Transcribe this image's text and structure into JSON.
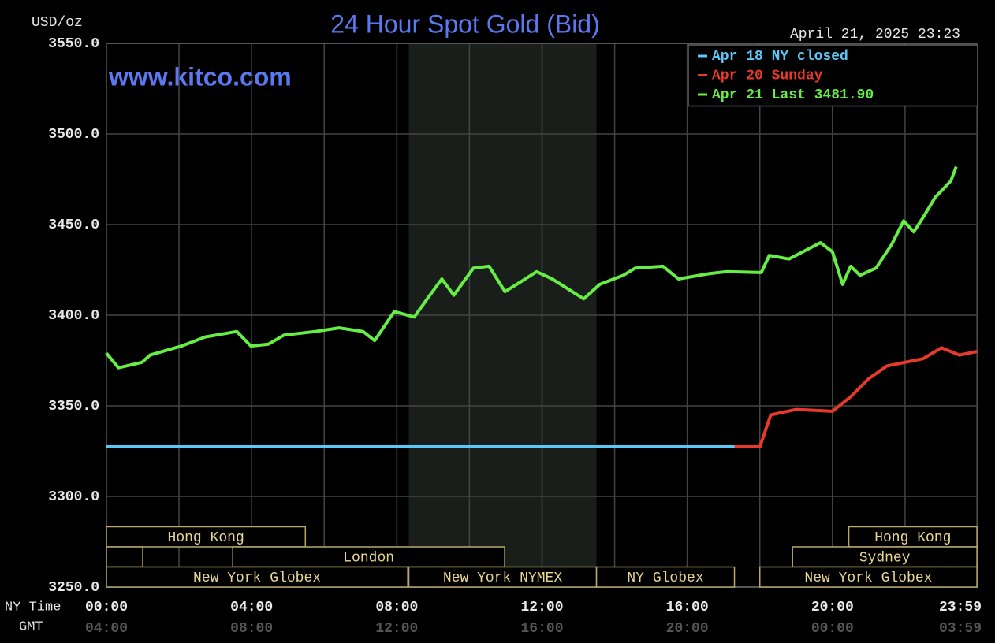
{
  "chart_data": {
    "type": "line",
    "title": "24 Hour Spot Gold (Bid)",
    "y_label": "USD/oz",
    "timestamp": "April 21, 2025 23:23",
    "watermark": "www.kitco.com",
    "x_label": "NY Time",
    "x2_label": "GMT",
    "xlim": [
      0,
      24
    ],
    "ylim": [
      3250,
      3550
    ],
    "yticks": [
      {
        "value": 3250,
        "label": "3250.0"
      },
      {
        "value": 3300,
        "label": "3300.0"
      },
      {
        "value": 3350,
        "label": "3350.0"
      },
      {
        "value": 3400,
        "label": "3400.0"
      },
      {
        "value": 3450,
        "label": "3450.0"
      },
      {
        "value": 3500,
        "label": "3500.0"
      },
      {
        "value": 3550,
        "label": "3550.0"
      }
    ],
    "xticks": [
      {
        "value": 0,
        "label": "00:00"
      },
      {
        "value": 4,
        "label": "04:00"
      },
      {
        "value": 8,
        "label": "08:00"
      },
      {
        "value": 12,
        "label": "12:00"
      },
      {
        "value": 16,
        "label": "16:00"
      },
      {
        "value": 20,
        "label": "20:00"
      },
      {
        "value": 23.98,
        "label": "23:59"
      }
    ],
    "x2ticks": [
      {
        "value": 0,
        "label": "04:00"
      },
      {
        "value": 4,
        "label": "08:00"
      },
      {
        "value": 8,
        "label": "12:00"
      },
      {
        "value": 12,
        "label": "16:00"
      },
      {
        "value": 16,
        "label": "20:00"
      },
      {
        "value": 20,
        "label": "00:00"
      },
      {
        "value": 23.98,
        "label": "03:59"
      }
    ],
    "xgrid": [
      2,
      4,
      6,
      8,
      10,
      12,
      14,
      16,
      18,
      20,
      22
    ],
    "grid": true,
    "shaded": [
      8.33,
      13.5
    ],
    "legend": "top-right",
    "series": [
      {
        "name": "Apr 18 NY closed",
        "color": "#5bc8f5",
        "x": [
          0,
          17.3
        ],
        "values": [
          3327.4,
          3327.4
        ]
      },
      {
        "name": "Apr 20 Sunday",
        "color": "#e8392b",
        "x": [
          17.3,
          18.0,
          18.3,
          19.0,
          20.0,
          20.5,
          21.0,
          21.5,
          22.5,
          23.0,
          23.5,
          23.98
        ],
        "values": [
          3327.4,
          3327.4,
          3345,
          3348,
          3347,
          3355,
          3365,
          3372,
          3376,
          3382,
          3378,
          3380
        ]
      },
      {
        "name": "Apr 21 Last 3481.90",
        "color": "#66ee44",
        "x": [
          0,
          0.33,
          0.98,
          1.2,
          2.07,
          2.72,
          3.59,
          3.98,
          4.46,
          4.89,
          5.76,
          6.41,
          7.07,
          7.39,
          7.93,
          8.48,
          8.91,
          9.24,
          9.57,
          10.11,
          10.54,
          10.98,
          11.3,
          11.85,
          12.28,
          13.15,
          13.59,
          14.24,
          14.57,
          15.33,
          15.76,
          16.63,
          17.07,
          18.04,
          18.26,
          18.8,
          19.67,
          20,
          20.28,
          20.5,
          20.76,
          21.2,
          21.63,
          21.96,
          22.24,
          22.5,
          22.83,
          23.26,
          23.41
        ],
        "values": [
          3379,
          3371,
          3374,
          3378,
          3383,
          3388,
          3391,
          3383,
          3384,
          3389,
          3391,
          3393,
          3391,
          3386,
          3402,
          3399,
          3411,
          3420,
          3411,
          3426,
          3427,
          3413,
          3417,
          3424,
          3420,
          3409,
          3417,
          3422,
          3426,
          3427,
          3420,
          3423,
          3424,
          3423.5,
          3433,
          3431,
          3440,
          3435,
          3417,
          3427,
          3422,
          3426,
          3439,
          3452,
          3446,
          3454,
          3465,
          3474,
          3481.9
        ]
      }
    ],
    "sessions": [
      [
        {
          "label": "Hong Kong",
          "start": 0,
          "end": 5.48
        },
        {
          "label": "Hong Kong",
          "start": 20.45,
          "end": 23.98
        }
      ],
      [
        {
          "label": null,
          "start": 0,
          "end": 1
        },
        {
          "label": "London",
          "start": 3.48,
          "end": 10.97
        },
        {
          "label": "Sydney",
          "start": 18.9,
          "end": 23.98
        }
      ],
      [
        {
          "label": "New York Globex",
          "start": 0,
          "end": 8.3
        },
        {
          "label": "New York NYMEX",
          "start": 8.33,
          "end": 13.5
        },
        {
          "label": "NY Globex",
          "start": 13.5,
          "end": 17.3
        },
        {
          "label": "New York Globex",
          "start": 18,
          "end": 23.98
        }
      ]
    ]
  }
}
